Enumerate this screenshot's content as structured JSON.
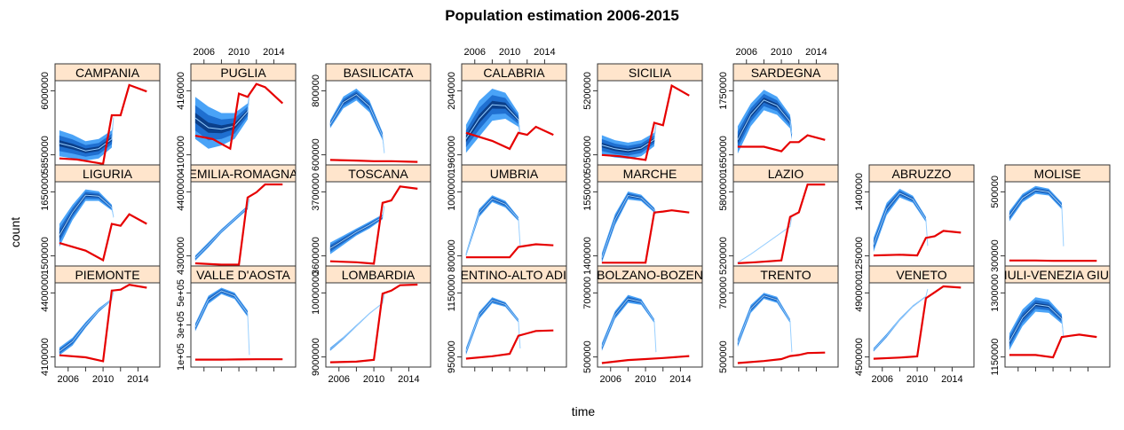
{
  "chart_data": {
    "type": "line",
    "title": "Population estimation 2006-2015",
    "xlabel": "time",
    "ylabel": "count",
    "x_ticks": [
      "2006",
      "2010",
      "2014"
    ],
    "xlim": [
      2004.5,
      2016.5
    ],
    "colors": {
      "strip": "#ffe5cc",
      "band_outer": "#4aa3f7",
      "band_mid": "#1f6fd0",
      "band_inner": "#0b3f8a",
      "median": "#9ad0ff",
      "observed": "#e60000",
      "frame": "#333333"
    },
    "panels": [
      {
        "name": "CAMPANIA",
        "row": 0,
        "col": 0,
        "ylim": [
          5760000,
          6150000
        ],
        "y_ticks": [
          "5850000",
          "6000000"
        ],
        "upper": [
          5920000,
          5900000,
          5870000,
          5880000,
          5920000,
          5980000
        ],
        "lower": [
          5800000,
          5790000,
          5780000,
          5790000,
          5840000,
          5980000
        ],
        "observed": {
          "x": [
            2005,
            2007,
            2010,
            2011,
            2012,
            2013,
            2015
          ],
          "y": [
            5790000,
            5785000,
            5765000,
            5990000,
            5990000,
            6130000,
            6100000
          ]
        }
      },
      {
        "name": "PUGLIA",
        "row": 0,
        "col": 1,
        "ylim": [
          4070000,
          4200000
        ],
        "y_ticks": [
          "4100000",
          "4160000"
        ],
        "upper": [
          4175000,
          4160000,
          4150000,
          4150000,
          4165000,
          4180000
        ],
        "lower": [
          4110000,
          4095000,
          4100000,
          4110000,
          4140000,
          4175000
        ],
        "observed": {
          "x": [
            2005,
            2007,
            2009,
            2010,
            2011,
            2012,
            2013,
            2015
          ],
          "y": [
            4115000,
            4110000,
            4095000,
            4180000,
            4175000,
            4195000,
            4190000,
            4165000
          ]
        }
      },
      {
        "name": "BASILICATA",
        "row": 0,
        "col": 2,
        "ylim": [
          575000,
          1000000
        ],
        "y_ticks": [
          "600000",
          "800000"
        ],
        "upper": [
          800000,
          920000,
          960000,
          900000,
          740000,
          640000
        ],
        "lower": [
          760000,
          860000,
          900000,
          840000,
          700000,
          630000
        ],
        "observed": {
          "x": [
            2005,
            2008,
            2010,
            2012,
            2015
          ],
          "y": [
            600000,
            597000,
            594000,
            594000,
            590000
          ]
        }
      },
      {
        "name": "CALABRIA",
        "row": 0,
        "col": 3,
        "ylim": [
          1930000,
          2140000
        ],
        "y_ticks": [
          "1960000",
          "2040000"
        ],
        "upper": [
          2030000,
          2090000,
          2120000,
          2110000,
          2060000,
          2010000
        ],
        "lower": [
          1960000,
          2000000,
          2040000,
          2045000,
          2025000,
          2005000
        ],
        "observed": {
          "x": [
            2005,
            2008,
            2010,
            2011,
            2012,
            2013,
            2015
          ],
          "y": [
            2010000,
            1990000,
            1970000,
            2010000,
            2005000,
            2025000,
            2005000
          ]
        }
      },
      {
        "name": "SICILIA",
        "row": 0,
        "col": 4,
        "ylim": [
          5010000,
          5350000
        ],
        "y_ticks": [
          "5050000",
          "5200000"
        ],
        "upper": [
          5130000,
          5110000,
          5100000,
          5110000,
          5140000,
          5175000
        ],
        "lower": [
          5050000,
          5040000,
          5035000,
          5045000,
          5085000,
          5170000
        ],
        "observed": {
          "x": [
            2005,
            2007,
            2010,
            2011,
            2012,
            2013,
            2015
          ],
          "y": [
            5050000,
            5045000,
            5030000,
            5180000,
            5170000,
            5330000,
            5290000
          ]
        }
      },
      {
        "name": "SARDEGNA",
        "row": 0,
        "col": 5,
        "ylim": [
          1625000,
          1810000
        ],
        "y_ticks": [
          "1650000",
          "1750000"
        ],
        "upper": [
          1710000,
          1760000,
          1790000,
          1775000,
          1735000,
          1705000
        ],
        "lower": [
          1650000,
          1710000,
          1745000,
          1735000,
          1705000,
          1680000
        ],
        "observed": {
          "x": [
            2005,
            2008,
            2010,
            2011,
            2012,
            2013,
            2015
          ],
          "y": [
            1665000,
            1665000,
            1655000,
            1675000,
            1675000,
            1690000,
            1680000
          ]
        }
      },
      {
        "name": "LIGURIA",
        "row": 1,
        "col": 0,
        "ylim": [
          1470000,
          1690000
        ],
        "y_ticks": [
          "1500000",
          "1650000"
        ],
        "upper": [
          1580000,
          1630000,
          1670000,
          1665000,
          1630000,
          1600000
        ],
        "lower": [
          1520000,
          1590000,
          1640000,
          1640000,
          1615000,
          1595000
        ],
        "observed": {
          "x": [
            2005,
            2008,
            2010,
            2011,
            2012,
            2013,
            2015
          ],
          "y": [
            1530000,
            1510000,
            1485000,
            1580000,
            1575000,
            1605000,
            1580000
          ]
        }
      },
      {
        "name": "EMILIA-ROMAGNA",
        "row": 1,
        "col": 1,
        "ylim": [
          4160000,
          4480000
        ],
        "y_ticks": [
          "4300000",
          "4400000"
        ],
        "upper": [
          4200000,
          4250000,
          4300000,
          4345000,
          4390000,
          4420000
        ],
        "lower": [
          4180000,
          4230000,
          4285000,
          4330000,
          4375000,
          4410000
        ],
        "observed": {
          "x": [
            2005,
            2008,
            2010,
            2011,
            2012,
            2013,
            2015
          ],
          "y": [
            4170000,
            4165000,
            4165000,
            4420000,
            4440000,
            4470000,
            4470000
          ]
        }
      },
      {
        "name": "TOSCANA",
        "row": 1,
        "col": 2,
        "ylim": [
          3590000,
          3770000
        ],
        "y_ticks": [
          "3600000",
          "3700000"
        ],
        "upper": [
          3640000,
          3655000,
          3670000,
          3685000,
          3700000,
          3720000
        ],
        "lower": [
          3615000,
          3635000,
          3655000,
          3670000,
          3690000,
          3715000
        ],
        "observed": {
          "x": [
            2005,
            2008,
            2010,
            2011,
            2012,
            2013,
            2015
          ],
          "y": [
            3600000,
            3598000,
            3595000,
            3725000,
            3730000,
            3760000,
            3755000
          ]
        }
      },
      {
        "name": "UMBRIA",
        "row": 1,
        "col": 3,
        "ylim": [
          790000,
          1100000
        ],
        "y_ticks": [
          "800000",
          "1000000"
        ],
        "upper": [
          840000,
          1000000,
          1050000,
          1030000,
          970000,
          870000
        ],
        "lower": [
          825000,
          970000,
          1025000,
          1005000,
          955000,
          860000
        ],
        "observed": {
          "x": [
            2005,
            2008,
            2010,
            2011,
            2012,
            2013,
            2015
          ],
          "y": [
            822000,
            822000,
            822000,
            860000,
            865000,
            870000,
            866000
          ]
        }
      },
      {
        "name": "MARCHE",
        "row": 1,
        "col": 4,
        "ylim": [
          1380000,
          1640000
        ],
        "y_ticks": [
          "1400000",
          "1550000"
        ],
        "upper": [
          1420000,
          1540000,
          1610000,
          1600000,
          1560000,
          1545000
        ],
        "lower": [
          1390000,
          1505000,
          1585000,
          1580000,
          1545000,
          1540000
        ],
        "observed": {
          "x": [
            2005,
            2007,
            2010,
            2011,
            2012,
            2013,
            2015
          ],
          "y": [
            1390000,
            1390000,
            1390000,
            1545000,
            1548000,
            1552000,
            1545000
          ]
        }
      },
      {
        "name": "LAZIO",
        "row": 1,
        "col": 5,
        "ylim": [
          5120000,
          6030000
        ],
        "y_ticks": [
          "5200000",
          "5800000"
        ],
        "upper": [
          5160000,
          5250000,
          5350000,
          5450000,
          5550000,
          5660000
        ],
        "lower": [
          5155000,
          5245000,
          5345000,
          5445000,
          5545000,
          5655000
        ],
        "observed": {
          "x": [
            2005,
            2007,
            2010,
            2011,
            2012,
            2013,
            2015
          ],
          "y": [
            5150000,
            5160000,
            5180000,
            5650000,
            5700000,
            6000000,
            6000000
          ]
        }
      },
      {
        "name": "ABRUZZO",
        "row": 1,
        "col": 6,
        "ylim": [
          1240000,
          1480000
        ],
        "y_ticks": [
          "1250000",
          "1400000"
        ],
        "upper": [
          1320000,
          1420000,
          1460000,
          1440000,
          1380000,
          1300000
        ],
        "lower": [
          1280000,
          1385000,
          1435000,
          1420000,
          1365000,
          1295000
        ],
        "observed": {
          "x": [
            2005,
            2008,
            2010,
            2011,
            2012,
            2013,
            2015
          ],
          "y": [
            1270000,
            1272000,
            1270000,
            1320000,
            1325000,
            1340000,
            1335000
          ]
        }
      },
      {
        "name": "MOLISE",
        "row": 1,
        "col": 7,
        "ylim": [
          280000,
          770000
        ],
        "y_ticks": [
          "300000",
          "500000"
        ],
        "upper": [
          600000,
          700000,
          745000,
          730000,
          650000,
          400000
        ],
        "lower": [
          540000,
          650000,
          700000,
          690000,
          610000,
          390000
        ],
        "observed": {
          "x": [
            2005,
            2008,
            2010,
            2012,
            2015
          ],
          "y": [
            312000,
            312000,
            310000,
            310000,
            310000
          ]
        }
      },
      {
        "name": "PIEMONTE",
        "row": 2,
        "col": 0,
        "ylim": [
          4050000,
          4480000
        ],
        "y_ticks": [
          "4100000",
          "4400000"
        ],
        "upper": [
          4150000,
          4200000,
          4280000,
          4350000,
          4400000,
          4440000
        ],
        "lower": [
          4110000,
          4160000,
          4250000,
          4330000,
          4390000,
          4430000
        ],
        "observed": {
          "x": [
            2005,
            2008,
            2010,
            2011,
            2012,
            2013,
            2015
          ],
          "y": [
            4110000,
            4100000,
            4080000,
            4440000,
            4445000,
            4470000,
            4455000
          ]
        }
      },
      {
        "name": "VALLE D'AOSTA",
        "row": 2,
        "col": 1,
        "ylim": [
          80000,
          600000
        ],
        "y_ticks": [
          "1e+05",
          "3e+05",
          "5e+05"
        ],
        "upper": [
          350000,
          520000,
          570000,
          540000,
          430000,
          160000
        ],
        "lower": [
          300000,
          470000,
          530000,
          500000,
          390000,
          150000
        ],
        "observed": {
          "x": [
            2005,
            2008,
            2010,
            2012,
            2015
          ],
          "y": [
            126000,
            126000,
            127000,
            128000,
            128000
          ]
        }
      },
      {
        "name": "LOMBARDIA",
        "row": 2,
        "col": 2,
        "ylim": [
          8880000,
          10280000
        ],
        "y_ticks": [
          "9000000",
          "10000000"
        ],
        "upper": [
          9200000,
          9380000,
          9580000,
          9780000,
          9950000,
          10100000
        ],
        "lower": [
          9150000,
          9340000,
          9550000,
          9760000,
          9935000,
          10090000
        ],
        "observed": {
          "x": [
            2005,
            2008,
            2010,
            2011,
            2012,
            2013,
            2015
          ],
          "y": [
            8960000,
            8970000,
            9000000,
            10100000,
            10150000,
            10240000,
            10250000
          ]
        }
      },
      {
        "name": "TRENTINO-ALTO ADIGE",
        "row": 2,
        "col": 3,
        "ylim": [
          920000,
          1270000
        ],
        "y_ticks": [
          "950000",
          "1150000"
        ],
        "upper": [
          1000000,
          1150000,
          1210000,
          1190000,
          1120000,
          1000000
        ],
        "lower": [
          970000,
          1120000,
          1185000,
          1170000,
          1105000,
          995000
        ],
        "observed": {
          "x": [
            2005,
            2008,
            2010,
            2011,
            2012,
            2013,
            2015
          ],
          "y": [
            955000,
            965000,
            975000,
            1050000,
            1060000,
            1070000,
            1072000
          ]
        }
      },
      {
        "name": "BOLZANO-BOZEN",
        "row": 2,
        "col": 4,
        "ylim": [
          480000,
          900000
        ],
        "y_ticks": [
          "500000",
          "700000"
        ],
        "upper": [
          600000,
          760000,
          840000,
          820000,
          720000,
          560000
        ],
        "lower": [
          560000,
          720000,
          800000,
          790000,
          700000,
          550000
        ],
        "observed": {
          "x": [
            2005,
            2008,
            2010,
            2012,
            2015
          ],
          "y": [
            500000,
            515000,
            520000,
            525000,
            535000
          ]
        }
      },
      {
        "name": "TRENTO",
        "row": 2,
        "col": 5,
        "ylim": [
          480000,
          900000
        ],
        "y_ticks": [
          "500000",
          "700000"
        ],
        "upper": [
          620000,
          790000,
          850000,
          830000,
          720000,
          560000
        ],
        "lower": [
          580000,
          750000,
          820000,
          800000,
          700000,
          550000
        ],
        "observed": {
          "x": [
            2005,
            2008,
            2010,
            2011,
            2012,
            2013,
            2015
          ],
          "y": [
            500000,
            510000,
            520000,
            535000,
            540000,
            550000,
            552000
          ]
        }
      },
      {
        "name": "VENETO",
        "row": 2,
        "col": 6,
        "ylim": [
          4420000,
          5130000
        ],
        "y_ticks": [
          "4500000",
          "4900000"
        ],
        "upper": [
          4580000,
          4700000,
          4830000,
          4940000,
          5020000,
          5080000
        ],
        "lower": [
          4550000,
          4670000,
          4810000,
          4925000,
          5010000,
          5075000
        ],
        "observed": {
          "x": [
            2005,
            2008,
            2010,
            2011,
            2012,
            2013,
            2015
          ],
          "y": [
            4490000,
            4500000,
            4510000,
            5000000,
            5050000,
            5100000,
            5090000
          ]
        }
      },
      {
        "name": "FRIULI-VENEZIA GIULIA",
        "row": 2,
        "col": 7,
        "ylim": [
          1110000,
          1460000
        ],
        "y_ticks": [
          "1150000",
          "1300000"
        ],
        "upper": [
          1250000,
          1350000,
          1400000,
          1390000,
          1330000,
          1240000
        ],
        "lower": [
          1180000,
          1280000,
          1340000,
          1335000,
          1290000,
          1225000
        ],
        "observed": {
          "x": [
            2005,
            2008,
            2010,
            2011,
            2012,
            2013,
            2015
          ],
          "y": [
            1160000,
            1160000,
            1150000,
            1235000,
            1240000,
            1245000,
            1235000
          ]
        }
      }
    ]
  }
}
